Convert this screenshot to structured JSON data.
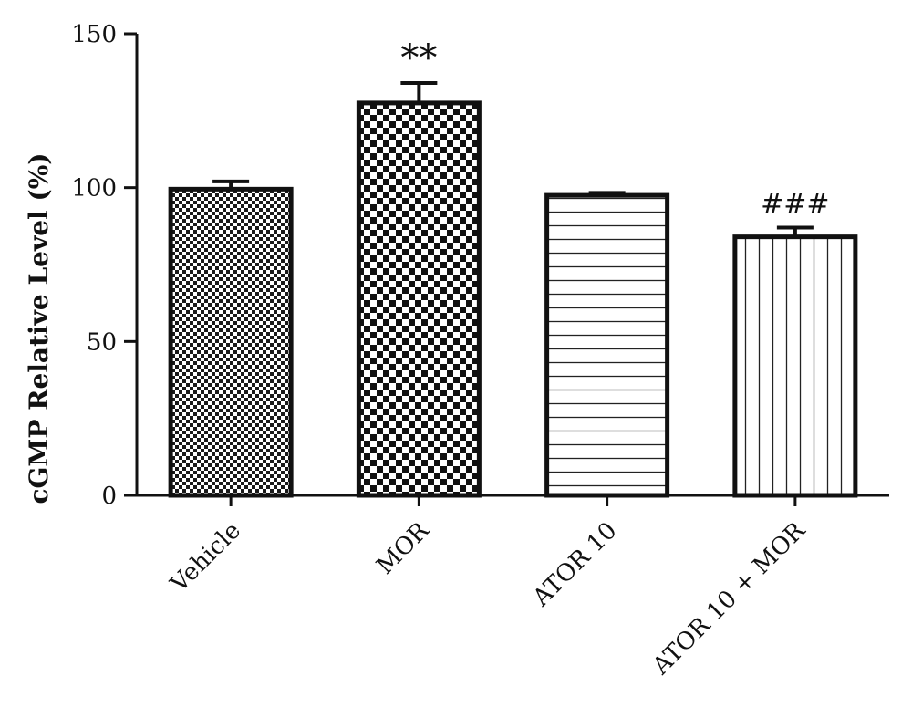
{
  "chart_data": {
    "type": "bar",
    "title": "",
    "xlabel": "",
    "ylabel": "cGMP Relative Level (%)",
    "ylim": [
      0,
      150
    ],
    "yticks": [
      0,
      50,
      100,
      150
    ],
    "grid": false,
    "categories": [
      "Vehicle",
      "MOR",
      "ATOR 10",
      "ATOR 10 + MOR"
    ],
    "values": [
      99.5,
      127.5,
      97.5,
      84
    ],
    "errors": [
      2.5,
      6.5,
      0.8,
      3
    ],
    "annotations": [
      "",
      "**",
      "",
      "###"
    ],
    "patterns": [
      "fine-checker",
      "coarse-checker",
      "horizontal-lines",
      "vertical-lines"
    ]
  }
}
